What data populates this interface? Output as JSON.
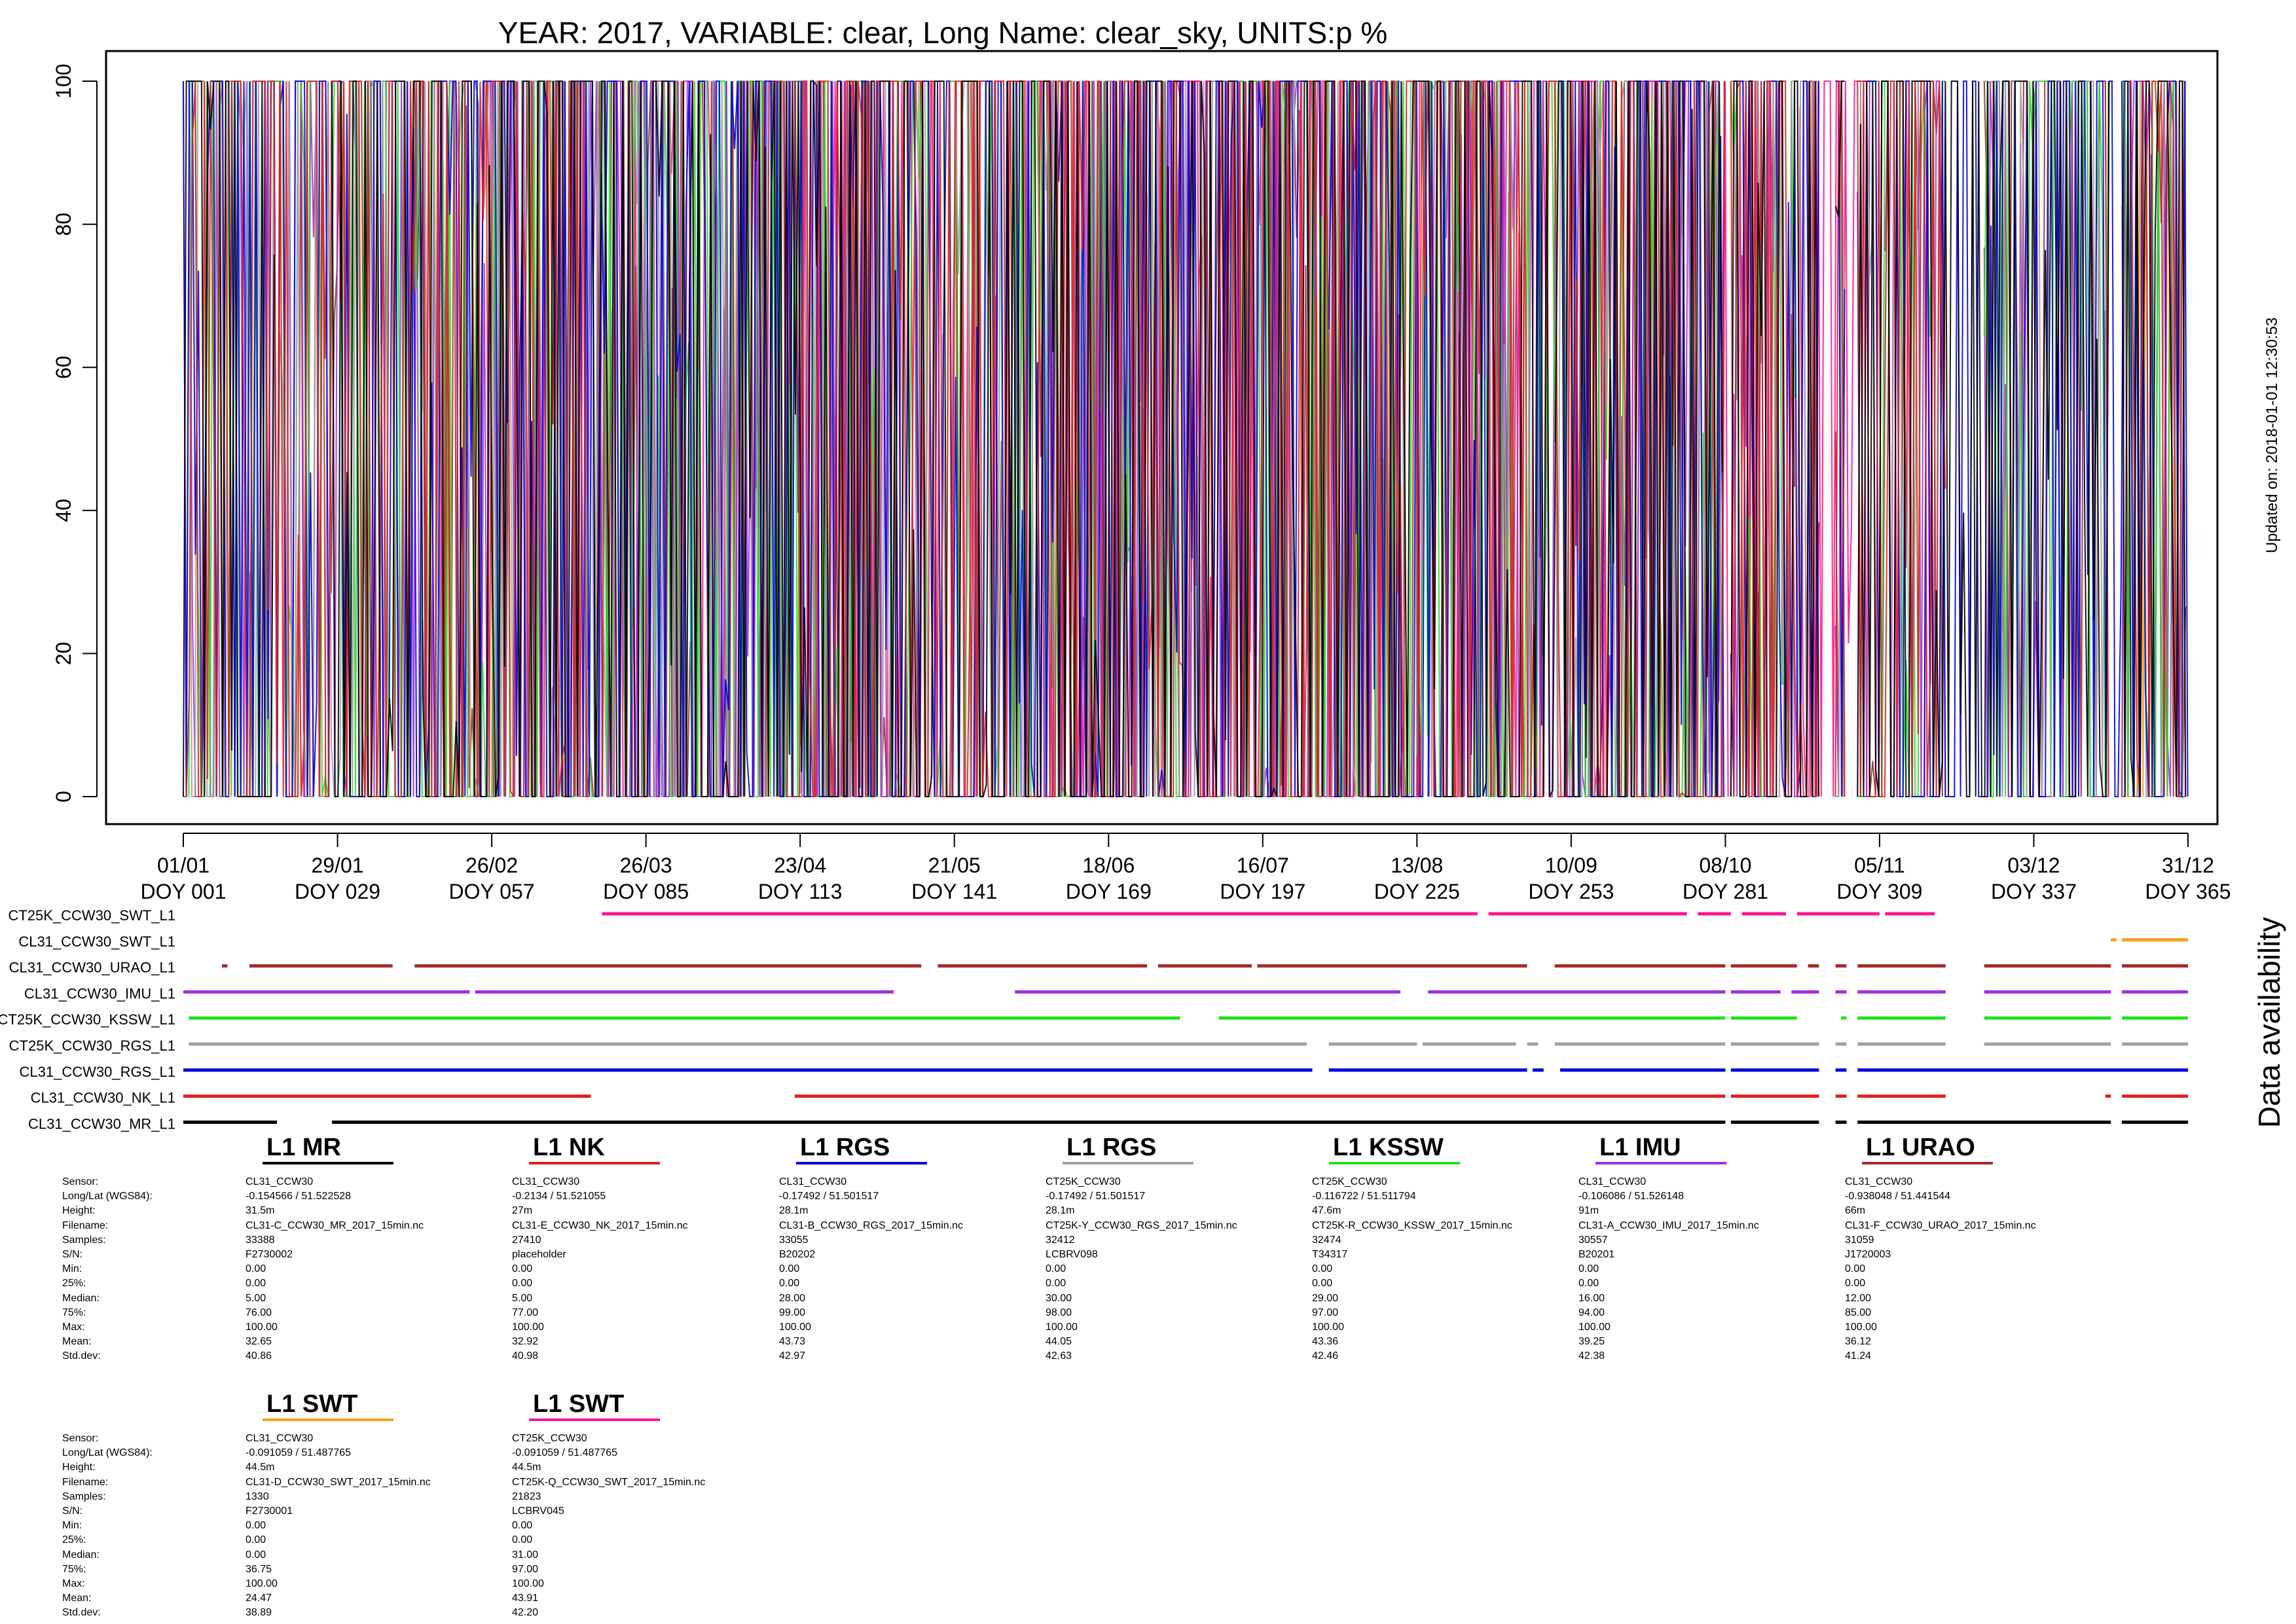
{
  "chart_data": {
    "type": "line",
    "title": "YEAR: 2017, VARIABLE: clear, Long Name: clear_sky, UNITS:p %",
    "updated": "Updated on: 2018-01-01 12:30:53",
    "availability_label": "Data availability",
    "xlim": [
      1,
      365
    ],
    "ylim": [
      0,
      100
    ],
    "y_ticks": [
      0,
      20,
      40,
      60,
      80,
      100
    ],
    "x_ticks": [
      {
        "doy": 1,
        "date": "01/01",
        "label": "DOY 001"
      },
      {
        "doy": 29,
        "date": "29/01",
        "label": "DOY 029"
      },
      {
        "doy": 57,
        "date": "26/02",
        "label": "DOY 057"
      },
      {
        "doy": 85,
        "date": "26/03",
        "label": "DOY 085"
      },
      {
        "doy": 113,
        "date": "23/04",
        "label": "DOY 113"
      },
      {
        "doy": 141,
        "date": "21/05",
        "label": "DOY 141"
      },
      {
        "doy": 169,
        "date": "18/06",
        "label": "DOY 169"
      },
      {
        "doy": 197,
        "date": "16/07",
        "label": "DOY 197"
      },
      {
        "doy": 225,
        "date": "13/08",
        "label": "DOY 225"
      },
      {
        "doy": 253,
        "date": "10/09",
        "label": "DOY 253"
      },
      {
        "doy": 281,
        "date": "08/10",
        "label": "DOY 281"
      },
      {
        "doy": 309,
        "date": "05/11",
        "label": "DOY 309"
      },
      {
        "doy": 337,
        "date": "03/12",
        "label": "DOY 337"
      },
      {
        "doy": 365,
        "date": "31/12",
        "label": "DOY 365"
      }
    ],
    "series": [
      {
        "name": "CT25K_CCW30_SWT_L1",
        "color": "#ff1493",
        "available": [
          [
            77,
            236
          ],
          [
            238,
            274
          ],
          [
            276,
            282
          ],
          [
            284,
            292
          ],
          [
            294,
            309
          ],
          [
            310,
            319
          ]
        ]
      },
      {
        "name": "CL31_CCW30_SWT_L1",
        "color": "#f5a020",
        "available": [
          [
            351,
            352
          ],
          [
            353,
            365
          ]
        ]
      },
      {
        "name": "CL31_CCW30_URAO_L1",
        "color": "#a52a2a",
        "available": [
          [
            8,
            9
          ],
          [
            13,
            39
          ],
          [
            43,
            135
          ],
          [
            138,
            176
          ],
          [
            178,
            195
          ],
          [
            196,
            245
          ],
          [
            250,
            281
          ],
          [
            282,
            294
          ],
          [
            296,
            298
          ],
          [
            301,
            303
          ],
          [
            305,
            321
          ],
          [
            328,
            351
          ],
          [
            353,
            365
          ]
        ]
      },
      {
        "name": "CL31_CCW30_IMU_L1",
        "color": "#a030e0",
        "available": [
          [
            1,
            53
          ],
          [
            54,
            130
          ],
          [
            152,
            222
          ],
          [
            227,
            281
          ],
          [
            282,
            291
          ],
          [
            293,
            298
          ],
          [
            301,
            303
          ],
          [
            305,
            321
          ],
          [
            328,
            351
          ],
          [
            353,
            365
          ]
        ]
      },
      {
        "name": "CT25K_CCW30_KSSW_L1",
        "color": "#22e022",
        "available": [
          [
            2,
            182
          ],
          [
            189,
            281
          ],
          [
            282,
            294
          ],
          [
            302,
            303
          ],
          [
            305,
            321
          ],
          [
            328,
            351
          ],
          [
            353,
            365
          ]
        ]
      },
      {
        "name": "CT25K_CCW30_RGS_L1",
        "color": "#a0a0a0",
        "available": [
          [
            2,
            205
          ],
          [
            209,
            225
          ],
          [
            226,
            243
          ],
          [
            245,
            247
          ],
          [
            250,
            281
          ],
          [
            282,
            298
          ],
          [
            301,
            303
          ],
          [
            305,
            321
          ],
          [
            328,
            351
          ],
          [
            353,
            365
          ]
        ]
      },
      {
        "name": "CL31_CCW30_RGS_L1",
        "color": "#0000dd",
        "available": [
          [
            1,
            206
          ],
          [
            209,
            245
          ],
          [
            246,
            248
          ],
          [
            251,
            281
          ],
          [
            282,
            298
          ],
          [
            301,
            303
          ],
          [
            305,
            365
          ]
        ]
      },
      {
        "name": "CL31_CCW30_NK_L1",
        "color": "#e02020",
        "available": [
          [
            1,
            75
          ],
          [
            112,
            281
          ],
          [
            282,
            298
          ],
          [
            301,
            303
          ],
          [
            305,
            321
          ],
          [
            350,
            351
          ],
          [
            353,
            365
          ]
        ]
      },
      {
        "name": "CL31_CCW30_MR_L1",
        "color": "#000000",
        "available": [
          [
            1,
            18
          ],
          [
            28,
            281
          ],
          [
            282,
            298
          ],
          [
            301,
            303
          ],
          [
            305,
            351
          ],
          [
            353,
            365
          ]
        ]
      }
    ],
    "stat_labels": [
      "Sensor:",
      "Long/Lat (WGS84):",
      "Height:",
      "Filename:",
      "Samples:",
      "S/N:",
      "Min:",
      "25%:",
      "Median:",
      "75%:",
      "Max:",
      "Mean:",
      "Std.dev:"
    ],
    "stations": [
      {
        "title": "L1 MR",
        "color": "#000000",
        "values": [
          "CL31_CCW30",
          "-0.154566 / 51.522528",
          "31.5m",
          "CL31-C_CCW30_MR_2017_15min.nc",
          "33388",
          "F2730002",
          "0.00",
          "0.00",
          "5.00",
          "76.00",
          "100.00",
          "32.65",
          "40.86"
        ]
      },
      {
        "title": "L1 NK",
        "color": "#e02020",
        "values": [
          "CL31_CCW30",
          "-0.2134 / 51.521055",
          "27m",
          "CL31-E_CCW30_NK_2017_15min.nc",
          "27410",
          "placeholder",
          "0.00",
          "0.00",
          "5.00",
          "77.00",
          "100.00",
          "32.92",
          "40.98"
        ]
      },
      {
        "title": "L1 RGS",
        "color": "#0000dd",
        "values": [
          "CL31_CCW30",
          "-0.17492 / 51.501517",
          "28.1m",
          "CL31-B_CCW30_RGS_2017_15min.nc",
          "33055",
          "B20202",
          "0.00",
          "0.00",
          "28.00",
          "99.00",
          "100.00",
          "43.73",
          "42.97"
        ]
      },
      {
        "title": "L1 RGS",
        "color": "#a0a0a0",
        "values": [
          "CT25K_CCW30",
          "-0.17492 / 51.501517",
          "28.1m",
          "CT25K-Y_CCW30_RGS_2017_15min.nc",
          "32412",
          "LCBRV098",
          "0.00",
          "0.00",
          "30.00",
          "98.00",
          "100.00",
          "44.05",
          "42.63"
        ]
      },
      {
        "title": "L1 KSSW",
        "color": "#22e022",
        "values": [
          "CT25K_CCW30",
          "-0.116722 / 51.511794",
          "47.6m",
          "CT25K-R_CCW30_KSSW_2017_15min.nc",
          "32474",
          "T34317",
          "0.00",
          "0.00",
          "29.00",
          "97.00",
          "100.00",
          "43.36",
          "42.46"
        ]
      },
      {
        "title": "L1 IMU",
        "color": "#a030e0",
        "values": [
          "CL31_CCW30",
          "-0.106086 / 51.526148",
          "91m",
          "CL31-A_CCW30_IMU_2017_15min.nc",
          "30557",
          "B20201",
          "0.00",
          "0.00",
          "16.00",
          "94.00",
          "100.00",
          "39.25",
          "42.38"
        ]
      },
      {
        "title": "L1 URAO",
        "color": "#a52a2a",
        "values": [
          "CL31_CCW30",
          "-0.938048 / 51.441544",
          "66m",
          "CL31-F_CCW30_URAO_2017_15min.nc",
          "31059",
          "J1720003",
          "0.00",
          "0.00",
          "12.00",
          "85.00",
          "100.00",
          "36.12",
          "41.24"
        ]
      },
      {
        "title": "L1 SWT",
        "color": "#f5a020",
        "values": [
          "CL31_CCW30",
          "-0.091059 / 51.487765",
          "44.5m",
          "CL31-D_CCW30_SWT_2017_15min.nc",
          "1330",
          "F2730001",
          "0.00",
          "0.00",
          "0.00",
          "36.75",
          "100.00",
          "24.47",
          "38.89"
        ]
      },
      {
        "title": "L1 SWT",
        "color": "#ff1493",
        "values": [
          "CT25K_CCW30",
          "-0.091059 / 51.487765",
          "44.5m",
          "CT25K-Q_CCW30_SWT_2017_15min.nc",
          "21823",
          "LCBRV045",
          "0.00",
          "0.00",
          "31.00",
          "97.00",
          "100.00",
          "43.91",
          "42.20"
        ]
      }
    ]
  }
}
